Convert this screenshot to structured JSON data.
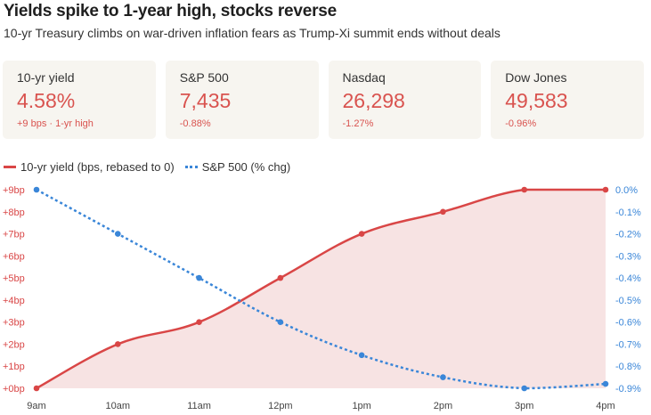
{
  "header": {
    "title": "Yields spike to 1-year high, stocks reverse",
    "subtitle": "10-yr Treasury climbs on war-driven inflation fears as Trump-Xi summit ends without deals"
  },
  "cards": [
    {
      "label": "10-yr yield",
      "value": "4.58%",
      "change": "+9 bps · 1-yr high"
    },
    {
      "label": "S&P 500",
      "value": "7,435",
      "change": "-0.88%"
    },
    {
      "label": "Nasdaq",
      "value": "26,298",
      "change": "-1.27%"
    },
    {
      "label": "Dow Jones",
      "value": "49,583",
      "change": "-0.96%"
    }
  ],
  "colors": {
    "yield": "#d94646",
    "yield_fill": "#f7e3e3",
    "sp500": "#3a86d8",
    "negative": "#d9534f"
  },
  "chart_data": {
    "type": "line",
    "x": [
      "9am",
      "10am",
      "11am",
      "12pm",
      "1pm",
      "2pm",
      "3pm",
      "4pm"
    ],
    "series": [
      {
        "name": "10-yr yield (bps, rebased to 0)",
        "axis": "left",
        "style": "solid-area",
        "values": [
          0,
          2,
          3,
          5,
          7,
          8,
          9,
          9
        ]
      },
      {
        "name": "S&P 500 (% chg)",
        "axis": "right",
        "style": "dotted",
        "values": [
          0.0,
          -0.2,
          -0.4,
          -0.6,
          -0.75,
          -0.85,
          -0.9,
          -0.88
        ]
      }
    ],
    "y_left": {
      "ylim": [
        0,
        9
      ],
      "ticks": [
        0,
        1,
        2,
        3,
        4,
        5,
        6,
        7,
        8,
        9
      ],
      "tick_labels": [
        "+0bp",
        "+1bp",
        "+2bp",
        "+3bp",
        "+4bp",
        "+5bp",
        "+6bp",
        "+7bp",
        "+8bp",
        "+9bp"
      ]
    },
    "y_right": {
      "ylim": [
        -0.9,
        0.0
      ],
      "ticks": [
        0.0,
        -0.1,
        -0.2,
        -0.3,
        -0.4,
        -0.5,
        -0.6,
        -0.7,
        -0.8,
        -0.9
      ],
      "tick_labels": [
        "0.0%",
        "-0.1%",
        "-0.2%",
        "-0.3%",
        "-0.4%",
        "-0.5%",
        "-0.6%",
        "-0.7%",
        "-0.8%",
        "-0.9%"
      ]
    },
    "grid": false,
    "legend_position": "top-left"
  }
}
